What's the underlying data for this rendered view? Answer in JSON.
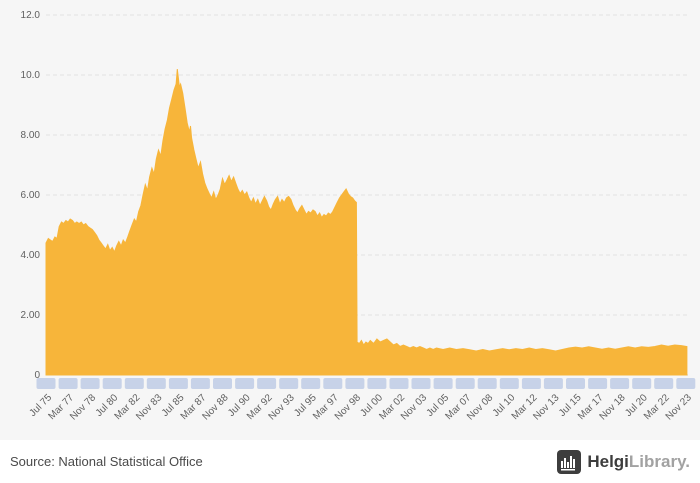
{
  "page": {
    "background": "#f6f6f6"
  },
  "footer": {
    "source": "Source: National Statistical Office",
    "brand_bold": "Helgi",
    "brand_light": "Library."
  },
  "chart_data": {
    "type": "area",
    "title": "",
    "xlabel": "",
    "ylabel": "",
    "ylim": [
      0,
      12
    ],
    "x_range": [
      1975.5,
      2024.0
    ],
    "grid": "horizontal-dashed",
    "legend": "none",
    "series_color": "#f7b53a",
    "tick_chip_color": "#c7d2e8",
    "axis_text_color": "#606060",
    "y_ticks": [
      {
        "v": 0,
        "label": "0"
      },
      {
        "v": 2,
        "label": "2.00"
      },
      {
        "v": 4,
        "label": "4.00"
      },
      {
        "v": 6,
        "label": "6.00"
      },
      {
        "v": 8,
        "label": "8.00"
      },
      {
        "v": 10,
        "label": "10.0"
      },
      {
        "v": 12,
        "label": "12.0"
      }
    ],
    "x_ticks": [
      {
        "t": 1975.5,
        "label": "Jul 75"
      },
      {
        "t": 1977.167,
        "label": "Mar 77"
      },
      {
        "t": 1978.833,
        "label": "Nov 78"
      },
      {
        "t": 1980.5,
        "label": "Jul 80"
      },
      {
        "t": 1982.167,
        "label": "Mar 82"
      },
      {
        "t": 1983.833,
        "label": "Nov 83"
      },
      {
        "t": 1985.5,
        "label": "Jul 85"
      },
      {
        "t": 1987.167,
        "label": "Mar 87"
      },
      {
        "t": 1988.833,
        "label": "Nov 88"
      },
      {
        "t": 1990.5,
        "label": "Jul 90"
      },
      {
        "t": 1992.167,
        "label": "Mar 92"
      },
      {
        "t": 1993.833,
        "label": "Nov 93"
      },
      {
        "t": 1995.5,
        "label": "Jul 95"
      },
      {
        "t": 1997.167,
        "label": "Mar 97"
      },
      {
        "t": 1998.833,
        "label": "Nov 98"
      },
      {
        "t": 2000.5,
        "label": "Jul 00"
      },
      {
        "t": 2002.167,
        "label": "Mar 02"
      },
      {
        "t": 2003.833,
        "label": "Nov 03"
      },
      {
        "t": 2005.5,
        "label": "Jul 05"
      },
      {
        "t": 2007.167,
        "label": "Mar 07"
      },
      {
        "t": 2008.833,
        "label": "Nov 08"
      },
      {
        "t": 2010.5,
        "label": "Jul 10"
      },
      {
        "t": 2012.167,
        "label": "Mar 12"
      },
      {
        "t": 2013.833,
        "label": "Nov 13"
      },
      {
        "t": 2015.5,
        "label": "Jul 15"
      },
      {
        "t": 2017.167,
        "label": "Mar 17"
      },
      {
        "t": 2018.833,
        "label": "Nov 18"
      },
      {
        "t": 2020.5,
        "label": "Jul 20"
      },
      {
        "t": 2022.167,
        "label": "Mar 22"
      },
      {
        "t": 2023.833,
        "label": "Nov 23"
      }
    ],
    "series": [
      {
        "name": "",
        "points": [
          [
            1975.5,
            4.4
          ],
          [
            1975.67,
            4.55
          ],
          [
            1975.83,
            4.5
          ],
          [
            1976.0,
            4.45
          ],
          [
            1976.17,
            4.6
          ],
          [
            1976.33,
            4.55
          ],
          [
            1976.5,
            4.95
          ],
          [
            1976.67,
            5.1
          ],
          [
            1976.83,
            5.05
          ],
          [
            1977.0,
            5.15
          ],
          [
            1977.17,
            5.1
          ],
          [
            1977.33,
            5.2
          ],
          [
            1977.5,
            5.15
          ],
          [
            1977.67,
            5.05
          ],
          [
            1977.83,
            5.1
          ],
          [
            1978.0,
            5.05
          ],
          [
            1978.17,
            5.1
          ],
          [
            1978.33,
            5.0
          ],
          [
            1978.5,
            5.05
          ],
          [
            1978.67,
            4.95
          ],
          [
            1978.83,
            4.9
          ],
          [
            1979.0,
            4.85
          ],
          [
            1979.17,
            4.75
          ],
          [
            1979.33,
            4.65
          ],
          [
            1979.5,
            4.5
          ],
          [
            1979.67,
            4.4
          ],
          [
            1979.83,
            4.3
          ],
          [
            1980.0,
            4.2
          ],
          [
            1980.17,
            4.35
          ],
          [
            1980.33,
            4.15
          ],
          [
            1980.5,
            4.25
          ],
          [
            1980.67,
            4.1
          ],
          [
            1980.83,
            4.3
          ],
          [
            1981.0,
            4.45
          ],
          [
            1981.17,
            4.3
          ],
          [
            1981.33,
            4.5
          ],
          [
            1981.5,
            4.4
          ],
          [
            1981.67,
            4.6
          ],
          [
            1981.83,
            4.8
          ],
          [
            1982.0,
            5.0
          ],
          [
            1982.17,
            5.2
          ],
          [
            1982.33,
            5.1
          ],
          [
            1982.5,
            5.45
          ],
          [
            1982.67,
            5.65
          ],
          [
            1982.83,
            6.0
          ],
          [
            1983.0,
            6.35
          ],
          [
            1983.17,
            6.15
          ],
          [
            1983.33,
            6.6
          ],
          [
            1983.5,
            6.9
          ],
          [
            1983.67,
            6.7
          ],
          [
            1983.83,
            7.2
          ],
          [
            1984.0,
            7.5
          ],
          [
            1984.17,
            7.3
          ],
          [
            1984.33,
            7.8
          ],
          [
            1984.5,
            8.2
          ],
          [
            1984.67,
            8.5
          ],
          [
            1984.83,
            8.9
          ],
          [
            1985.0,
            9.2
          ],
          [
            1985.17,
            9.5
          ],
          [
            1985.33,
            9.7
          ],
          [
            1985.42,
            10.2
          ],
          [
            1985.5,
            9.9
          ],
          [
            1985.58,
            9.6
          ],
          [
            1985.67,
            9.7
          ],
          [
            1985.83,
            9.4
          ],
          [
            1986.0,
            8.9
          ],
          [
            1986.17,
            8.4
          ],
          [
            1986.33,
            8.1
          ],
          [
            1986.42,
            8.3
          ],
          [
            1986.5,
            7.9
          ],
          [
            1986.67,
            7.5
          ],
          [
            1986.83,
            7.2
          ],
          [
            1987.0,
            6.9
          ],
          [
            1987.17,
            7.1
          ],
          [
            1987.33,
            6.7
          ],
          [
            1987.5,
            6.4
          ],
          [
            1987.67,
            6.2
          ],
          [
            1987.83,
            6.05
          ],
          [
            1988.0,
            5.9
          ],
          [
            1988.17,
            6.1
          ],
          [
            1988.33,
            5.85
          ],
          [
            1988.5,
            6.0
          ],
          [
            1988.67,
            6.2
          ],
          [
            1988.83,
            6.55
          ],
          [
            1989.0,
            6.35
          ],
          [
            1989.17,
            6.5
          ],
          [
            1989.33,
            6.65
          ],
          [
            1989.5,
            6.45
          ],
          [
            1989.67,
            6.6
          ],
          [
            1989.83,
            6.4
          ],
          [
            1990.0,
            6.2
          ],
          [
            1990.17,
            6.05
          ],
          [
            1990.33,
            6.15
          ],
          [
            1990.5,
            6.0
          ],
          [
            1990.67,
            6.1
          ],
          [
            1990.83,
            5.9
          ],
          [
            1991.0,
            5.75
          ],
          [
            1991.17,
            5.9
          ],
          [
            1991.33,
            5.7
          ],
          [
            1991.5,
            5.85
          ],
          [
            1991.67,
            5.65
          ],
          [
            1991.83,
            5.8
          ],
          [
            1992.0,
            5.95
          ],
          [
            1992.17,
            5.8
          ],
          [
            1992.33,
            5.6
          ],
          [
            1992.5,
            5.5
          ],
          [
            1992.67,
            5.7
          ],
          [
            1992.83,
            5.85
          ],
          [
            1993.0,
            5.95
          ],
          [
            1993.17,
            5.7
          ],
          [
            1993.33,
            5.85
          ],
          [
            1993.5,
            5.75
          ],
          [
            1993.67,
            5.9
          ],
          [
            1993.83,
            5.95
          ],
          [
            1994.0,
            5.85
          ],
          [
            1994.17,
            5.65
          ],
          [
            1994.33,
            5.5
          ],
          [
            1994.5,
            5.4
          ],
          [
            1994.67,
            5.55
          ],
          [
            1994.83,
            5.65
          ],
          [
            1995.0,
            5.5
          ],
          [
            1995.17,
            5.35
          ],
          [
            1995.33,
            5.45
          ],
          [
            1995.5,
            5.4
          ],
          [
            1995.67,
            5.5
          ],
          [
            1995.83,
            5.45
          ],
          [
            1996.0,
            5.3
          ],
          [
            1996.17,
            5.4
          ],
          [
            1996.33,
            5.25
          ],
          [
            1996.5,
            5.35
          ],
          [
            1996.67,
            5.3
          ],
          [
            1996.83,
            5.4
          ],
          [
            1997.0,
            5.35
          ],
          [
            1997.17,
            5.45
          ],
          [
            1997.33,
            5.6
          ],
          [
            1997.5,
            5.75
          ],
          [
            1997.67,
            5.9
          ],
          [
            1997.83,
            6.0
          ],
          [
            1998.0,
            6.1
          ],
          [
            1998.17,
            6.2
          ],
          [
            1998.33,
            6.05
          ],
          [
            1998.5,
            5.95
          ],
          [
            1998.67,
            5.9
          ],
          [
            1998.83,
            5.8
          ],
          [
            1998.95,
            5.75
          ],
          [
            1999.0,
            1.1
          ],
          [
            1999.17,
            1.05
          ],
          [
            1999.33,
            1.15
          ],
          [
            1999.5,
            1.0
          ],
          [
            1999.67,
            1.1
          ],
          [
            1999.83,
            1.05
          ],
          [
            2000.0,
            1.15
          ],
          [
            2000.25,
            1.05
          ],
          [
            2000.5,
            1.2
          ],
          [
            2000.75,
            1.1
          ],
          [
            2001.0,
            1.15
          ],
          [
            2001.25,
            1.2
          ],
          [
            2001.5,
            1.1
          ],
          [
            2001.75,
            1.0
          ],
          [
            2002.0,
            1.05
          ],
          [
            2002.25,
            0.95
          ],
          [
            2002.5,
            1.0
          ],
          [
            2002.75,
            0.95
          ],
          [
            2003.0,
            0.9
          ],
          [
            2003.25,
            0.95
          ],
          [
            2003.5,
            0.9
          ],
          [
            2003.75,
            0.95
          ],
          [
            2004.0,
            0.9
          ],
          [
            2004.25,
            0.85
          ],
          [
            2004.5,
            0.9
          ],
          [
            2004.75,
            0.85
          ],
          [
            2005.0,
            0.9
          ],
          [
            2005.5,
            0.85
          ],
          [
            2006.0,
            0.9
          ],
          [
            2006.5,
            0.85
          ],
          [
            2007.0,
            0.88
          ],
          [
            2007.5,
            0.84
          ],
          [
            2008.0,
            0.8
          ],
          [
            2008.5,
            0.85
          ],
          [
            2009.0,
            0.8
          ],
          [
            2009.5,
            0.84
          ],
          [
            2010.0,
            0.88
          ],
          [
            2010.5,
            0.84
          ],
          [
            2011.0,
            0.88
          ],
          [
            2011.5,
            0.85
          ],
          [
            2012.0,
            0.9
          ],
          [
            2012.5,
            0.85
          ],
          [
            2013.0,
            0.88
          ],
          [
            2013.5,
            0.84
          ],
          [
            2014.0,
            0.8
          ],
          [
            2014.5,
            0.85
          ],
          [
            2015.0,
            0.9
          ],
          [
            2015.5,
            0.93
          ],
          [
            2016.0,
            0.9
          ],
          [
            2016.5,
            0.94
          ],
          [
            2017.0,
            0.9
          ],
          [
            2017.5,
            0.86
          ],
          [
            2018.0,
            0.9
          ],
          [
            2018.5,
            0.86
          ],
          [
            2019.0,
            0.9
          ],
          [
            2019.5,
            0.94
          ],
          [
            2020.0,
            0.9
          ],
          [
            2020.5,
            0.94
          ],
          [
            2021.0,
            0.92
          ],
          [
            2021.5,
            0.95
          ],
          [
            2022.0,
            1.0
          ],
          [
            2022.5,
            0.96
          ],
          [
            2023.0,
            1.0
          ],
          [
            2023.5,
            0.98
          ],
          [
            2023.92,
            0.95
          ]
        ]
      }
    ]
  }
}
